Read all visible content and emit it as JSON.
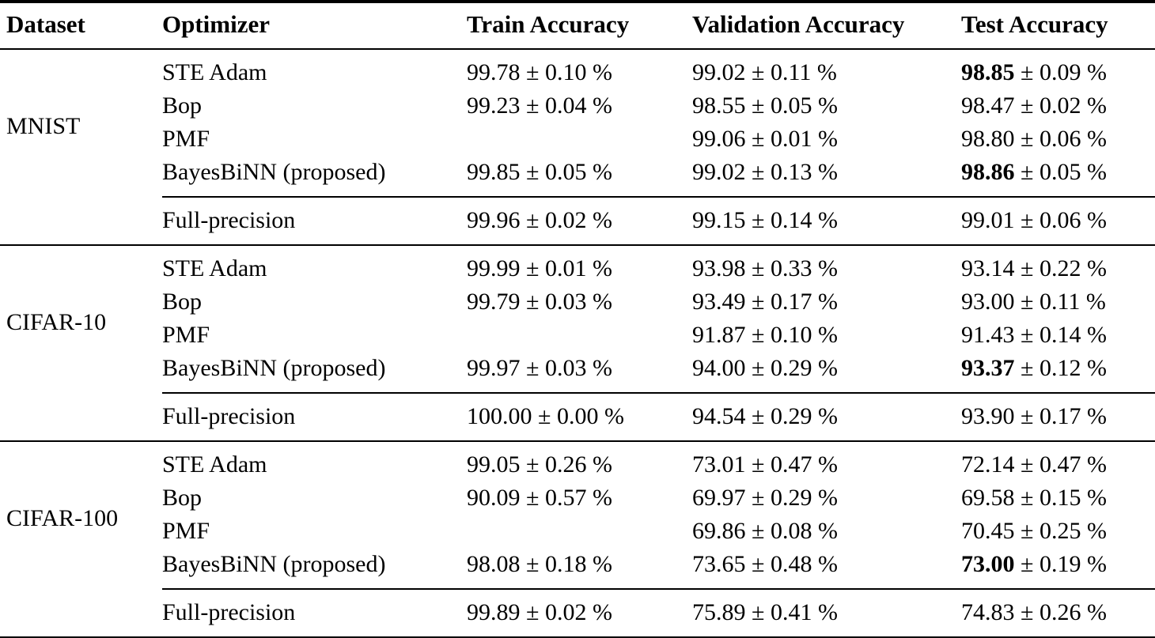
{
  "table": {
    "columns": [
      "Dataset",
      "Optimizer",
      "Train Accuracy",
      "Validation Accuracy",
      "Test Accuracy"
    ],
    "symbols": {
      "plus_minus": "±",
      "percent": "%"
    },
    "groups": [
      {
        "dataset": "MNIST",
        "rows": [
          {
            "optimizer": "STE Adam",
            "train": {
              "mean": "99.78",
              "err": "0.10",
              "bold": false
            },
            "validation": {
              "mean": "99.02",
              "err": "0.11",
              "bold": false
            },
            "test": {
              "mean": "98.85",
              "err": "0.09",
              "bold": true
            }
          },
          {
            "optimizer": "Bop",
            "train": {
              "mean": "99.23",
              "err": "0.04",
              "bold": false
            },
            "validation": {
              "mean": "98.55",
              "err": "0.05",
              "bold": false
            },
            "test": {
              "mean": "98.47",
              "err": "0.02",
              "bold": false
            }
          },
          {
            "optimizer": "PMF",
            "train": null,
            "validation": {
              "mean": "99.06",
              "err": "0.01",
              "bold": false
            },
            "test": {
              "mean": "98.80",
              "err": "0.06",
              "bold": false
            }
          },
          {
            "optimizer": "BayesBiNN (proposed)",
            "train": {
              "mean": "99.85",
              "err": "0.05",
              "bold": false
            },
            "validation": {
              "mean": "99.02",
              "err": "0.13",
              "bold": false
            },
            "test": {
              "mean": "98.86",
              "err": "0.05",
              "bold": true
            }
          }
        ],
        "full_precision_row": {
          "optimizer": "Full-precision",
          "train": {
            "mean": "99.96",
            "err": "0.02",
            "bold": false
          },
          "validation": {
            "mean": "99.15",
            "err": "0.14",
            "bold": false
          },
          "test": {
            "mean": "99.01",
            "err": "0.06",
            "bold": false
          }
        }
      },
      {
        "dataset": "CIFAR-10",
        "rows": [
          {
            "optimizer": "STE Adam",
            "train": {
              "mean": "99.99",
              "err": "0.01",
              "bold": false
            },
            "validation": {
              "mean": "93.98",
              "err": "0.33",
              "bold": false
            },
            "test": {
              "mean": "93.14",
              "err": "0.22",
              "bold": false
            }
          },
          {
            "optimizer": "Bop",
            "train": {
              "mean": "99.79",
              "err": "0.03",
              "bold": false
            },
            "validation": {
              "mean": "93.49",
              "err": "0.17",
              "bold": false
            },
            "test": {
              "mean": "93.00",
              "err": "0.11",
              "bold": false
            }
          },
          {
            "optimizer": "PMF",
            "train": null,
            "validation": {
              "mean": "91.87",
              "err": "0.10",
              "bold": false
            },
            "test": {
              "mean": "91.43",
              "err": "0.14",
              "bold": false
            }
          },
          {
            "optimizer": "BayesBiNN (proposed)",
            "train": {
              "mean": "99.97",
              "err": "0.03",
              "bold": false
            },
            "validation": {
              "mean": "94.00",
              "err": "0.29",
              "bold": false
            },
            "test": {
              "mean": "93.37",
              "err": "0.12",
              "bold": true
            }
          }
        ],
        "full_precision_row": {
          "optimizer": "Full-precision",
          "train": {
            "mean": "100.00",
            "err": "0.00",
            "bold": false
          },
          "validation": {
            "mean": "94.54",
            "err": "0.29",
            "bold": false
          },
          "test": {
            "mean": "93.90",
            "err": "0.17",
            "bold": false
          }
        }
      },
      {
        "dataset": "CIFAR-100",
        "rows": [
          {
            "optimizer": "STE Adam",
            "train": {
              "mean": "99.05",
              "err": "0.26",
              "bold": false
            },
            "validation": {
              "mean": "73.01",
              "err": "0.47",
              "bold": false
            },
            "test": {
              "mean": "72.14",
              "err": "0.47",
              "bold": false
            }
          },
          {
            "optimizer": "Bop",
            "train": {
              "mean": "90.09",
              "err": "0.57",
              "bold": false
            },
            "validation": {
              "mean": "69.97",
              "err": "0.29",
              "bold": false
            },
            "test": {
              "mean": "69.58",
              "err": "0.15",
              "bold": false
            }
          },
          {
            "optimizer": "PMF",
            "train": null,
            "validation": {
              "mean": "69.86",
              "err": "0.08",
              "bold": false
            },
            "test": {
              "mean": "70.45",
              "err": "0.25",
              "bold": false
            }
          },
          {
            "optimizer": "BayesBiNN (proposed)",
            "train": {
              "mean": "98.08",
              "err": "0.18",
              "bold": false
            },
            "validation": {
              "mean": "73.65",
              "err": "0.48",
              "bold": false
            },
            "test": {
              "mean": "73.00",
              "err": "0.19",
              "bold": true
            }
          }
        ],
        "full_precision_row": {
          "optimizer": "Full-precision",
          "train": {
            "mean": "99.89",
            "err": "0.02",
            "bold": false
          },
          "validation": {
            "mean": "75.89",
            "err": "0.41",
            "bold": false
          },
          "test": {
            "mean": "74.83",
            "err": "0.26",
            "bold": false
          }
        }
      }
    ]
  }
}
